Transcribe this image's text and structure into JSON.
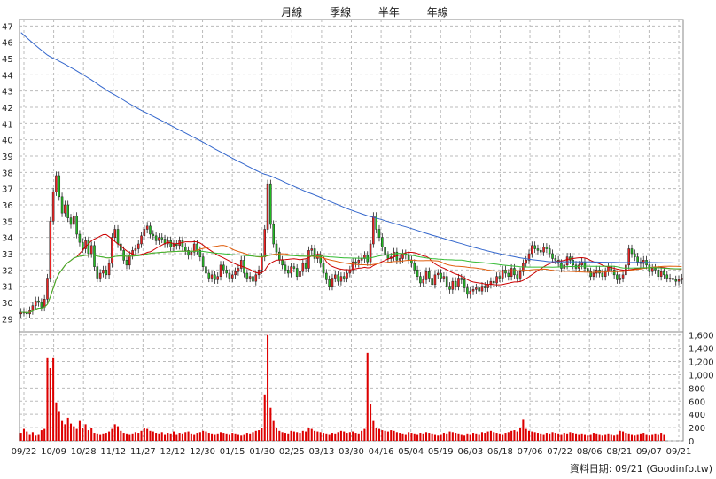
{
  "chart_data": {
    "type": "candlestick",
    "legend": [
      {
        "label": "月線",
        "color": "#cc0000"
      },
      {
        "label": "季線",
        "color": "#e06010"
      },
      {
        "label": "半年",
        "color": "#33bb33"
      },
      {
        "label": "年線",
        "color": "#3366cc"
      }
    ],
    "price_axis": {
      "ticks": [
        29,
        30,
        31,
        32,
        33,
        34,
        35,
        36,
        37,
        38,
        39,
        40,
        41,
        42,
        43,
        44,
        45,
        46,
        47
      ],
      "ylim": [
        28.2,
        47.4
      ]
    },
    "volume_axis": {
      "ticks": [
        "0",
        "200",
        "400",
        "600",
        "800",
        "1,000",
        "1,200",
        "1,400",
        "1,600"
      ],
      "ylim": [
        0,
        1650
      ]
    },
    "x_labels": [
      "09/22",
      "10/09",
      "10/28",
      "11/12",
      "11/27",
      "12/12",
      "12/30",
      "01/15",
      "01/30",
      "02/25",
      "03/13",
      "03/30",
      "04/16",
      "05/04",
      "05/19",
      "06/03",
      "06/18",
      "07/06",
      "07/22",
      "08/06",
      "08/21",
      "09/07",
      "09/21"
    ],
    "closes": [
      29.4,
      29.4,
      29.3,
      29.5,
      29.8,
      30.1,
      30.0,
      29.7,
      30.2,
      31.5,
      35.0,
      36.8,
      37.8,
      36.5,
      35.5,
      36.0,
      35.2,
      34.8,
      35.3,
      34.2,
      33.7,
      33.3,
      33.8,
      33.0,
      33.5,
      32.2,
      31.5,
      31.8,
      32.0,
      31.7,
      32.4,
      34.0,
      34.5,
      33.6,
      33.2,
      32.6,
      32.3,
      32.9,
      33.2,
      33.3,
      33.6,
      34.1,
      34.5,
      34.7,
      34.2,
      34.1,
      33.8,
      34.0,
      33.9,
      33.6,
      33.8,
      33.4,
      33.6,
      33.5,
      33.8,
      33.4,
      33.2,
      32.9,
      33.1,
      33.6,
      33.2,
      32.8,
      32.2,
      31.8,
      31.5,
      31.7,
      31.4,
      31.6,
      32.3,
      32.0,
      31.8,
      31.5,
      31.7,
      31.9,
      32.1,
      32.6,
      31.8,
      31.5,
      31.6,
      31.3,
      31.7,
      32.0,
      32.8,
      34.5,
      37.3,
      34.8,
      33.6,
      33.1,
      32.6,
      32.3,
      32.0,
      31.8,
      32.2,
      32.1,
      31.6,
      31.9,
      32.4,
      32.1,
      33.2,
      33.3,
      32.7,
      32.9,
      32.4,
      31.8,
      31.4,
      31.0,
      31.5,
      31.7,
      31.3,
      31.6,
      31.5,
      31.8,
      32.0,
      32.5,
      32.4,
      32.6,
      32.7,
      32.9,
      32.5,
      33.6,
      35.3,
      34.5,
      34.0,
      33.4,
      32.9,
      32.7,
      32.8,
      33.1,
      32.6,
      32.7,
      33.0,
      32.9,
      32.6,
      32.4,
      32.0,
      31.6,
      31.2,
      31.4,
      31.9,
      31.5,
      31.1,
      31.7,
      31.8,
      31.5,
      31.6,
      31.0,
      30.8,
      31.3,
      31.0,
      31.5,
      31.4,
      30.9,
      30.5,
      30.7,
      30.8,
      30.9,
      30.7,
      31.0,
      30.9,
      31.1,
      31.3,
      31.2,
      31.6,
      31.5,
      32.0,
      31.8,
      31.6,
      32.1,
      31.7,
      31.5,
      31.9,
      32.4,
      32.6,
      33.0,
      33.5,
      33.3,
      33.2,
      33.1,
      33.4,
      33.3,
      33.0,
      32.7,
      32.6,
      32.4,
      32.1,
      32.3,
      32.8,
      32.6,
      32.3,
      32.1,
      32.3,
      32.5,
      32.1,
      31.9,
      31.6,
      31.8,
      32.0,
      31.8,
      31.6,
      31.9,
      32.2,
      32.0,
      31.7,
      31.4,
      31.5,
      31.7,
      32.3,
      33.3,
      33.0,
      32.8,
      32.5,
      32.4,
      32.6,
      32.3,
      31.9,
      32.1,
      32.0,
      31.6,
      31.9,
      31.7,
      31.5,
      31.5,
      31.4,
      31.3,
      31.4,
      31.5
    ],
    "volumes": [
      120,
      180,
      140,
      100,
      130,
      90,
      100,
      160,
      180,
      1250,
      1100,
      1250,
      580,
      450,
      300,
      250,
      350,
      260,
      220,
      180,
      300,
      200,
      250,
      160,
      200,
      120,
      110,
      100,
      110,
      120,
      140,
      180,
      250,
      220,
      150,
      120,
      110,
      100,
      110,
      130,
      120,
      150,
      200,
      180,
      150,
      140,
      120,
      110,
      130,
      100,
      120,
      110,
      140,
      100,
      120,
      110,
      130,
      140,
      110,
      100,
      120,
      130,
      150,
      140,
      120,
      110,
      100,
      110,
      130,
      120,
      110,
      100,
      120,
      110,
      100,
      90,
      100,
      120,
      110,
      130,
      150,
      160,
      200,
      700,
      1600,
      500,
      300,
      200,
      150,
      130,
      120,
      110,
      150,
      140,
      130,
      120,
      150,
      140,
      200,
      180,
      150,
      140,
      130,
      120,
      110,
      100,
      120,
      110,
      130,
      150,
      140,
      120,
      130,
      140,
      120,
      110,
      150,
      180,
      1330,
      550,
      300,
      200,
      180,
      160,
      150,
      140,
      160,
      150,
      130,
      120,
      110,
      100,
      130,
      120,
      110,
      100,
      120,
      110,
      130,
      120,
      110,
      100,
      90,
      100,
      120,
      110,
      140,
      130,
      120,
      110,
      100,
      90,
      110,
      100,
      120,
      110,
      100,
      130,
      120,
      140,
      150,
      130,
      120,
      110,
      100,
      120,
      130,
      150,
      160,
      140,
      200,
      330,
      180,
      150,
      140,
      130,
      120,
      110,
      100,
      120,
      110,
      130,
      120,
      110,
      100,
      120,
      110,
      130,
      120,
      110,
      100,
      110,
      100,
      90,
      100,
      120,
      110,
      100,
      90,
      100,
      110,
      100,
      90,
      100,
      150,
      140,
      120,
      110,
      100,
      90,
      100,
      110,
      120,
      100,
      90,
      100,
      110,
      100,
      120,
      100
    ]
  },
  "source_text": "資料日期: 09/21   (Goodinfo.tw)"
}
